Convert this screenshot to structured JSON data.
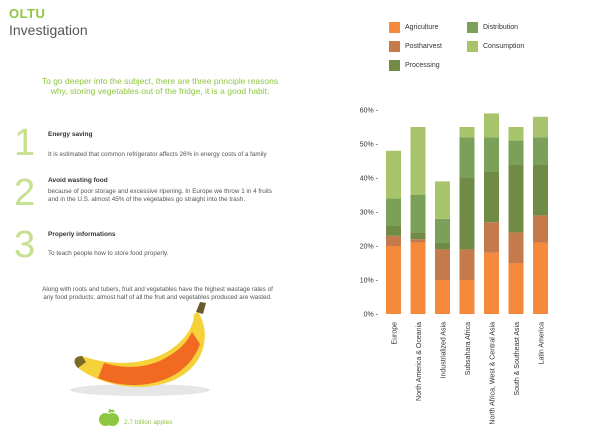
{
  "header": {
    "brand": "OLTU",
    "subtitle": "Investigation"
  },
  "intro": "To go deeper into the subject, there are three principle reasons why, storing vegetables out of the fridge, it is a good habit:",
  "reasons": [
    {
      "number": "1",
      "title": "Energy saving",
      "text": "It is estimated that common refrigerator affects 26% in energy costs of a family"
    },
    {
      "number": "2",
      "title": "Avoid wasting food",
      "text": "because of poor storage and excessive ripening. In Europe we throw 1 in 4 fruits and in the U.S. almost 45% of the vegetables go straight into the trash."
    },
    {
      "number": "3",
      "title": "Properly informations",
      "text": "To teach people how to store food properly."
    }
  ],
  "wastage_note": "Along with roots and tubers, fruit and vegetables have the highest wastage rates of any food products; almost half of all the fruit and vegetables produced are wasted.",
  "apples_note": "2.7 billion apples",
  "icons": {
    "banana": "banana-illustration",
    "apple": "apple-icon"
  },
  "colors": {
    "Agriculture": "#f58a3c",
    "Postharvest": "#c47a4a",
    "Processing": "#6f8b45",
    "Distribution": "#7ba05a",
    "Consumption": "#a8c46a",
    "accent": "#8dc63f"
  },
  "chart_data": {
    "type": "bar",
    "stacked": true,
    "categories": [
      "Europe",
      "North America & Oceania",
      "Industrialized Asia",
      "Subsahara Africa",
      "North Africa, West & Central Asia",
      "South & Southeast Asia",
      "Latin America"
    ],
    "series": [
      {
        "name": "Agriculture",
        "values": [
          20,
          21,
          10,
          10,
          18,
          15,
          21
        ]
      },
      {
        "name": "Postharvest",
        "values": [
          3,
          1,
          9,
          9,
          9,
          9,
          8
        ]
      },
      {
        "name": "Processing",
        "values": [
          3,
          2,
          2,
          21,
          15,
          20,
          15
        ]
      },
      {
        "name": "Distribution",
        "values": [
          8,
          11,
          7,
          12,
          10,
          7,
          8
        ]
      },
      {
        "name": "Consumption",
        "values": [
          14,
          20,
          11,
          3,
          7,
          4,
          6
        ]
      }
    ],
    "legend": [
      "Agriculture",
      "Distribution",
      "Postharvest",
      "Consumption",
      "Processing"
    ],
    "yticks": [
      "60% -",
      "50% -",
      "40% -",
      "30% -",
      "20% -",
      "10% -",
      "0% -"
    ],
    "ylim": [
      0,
      60
    ],
    "grid": false,
    "legend_position": "top"
  }
}
